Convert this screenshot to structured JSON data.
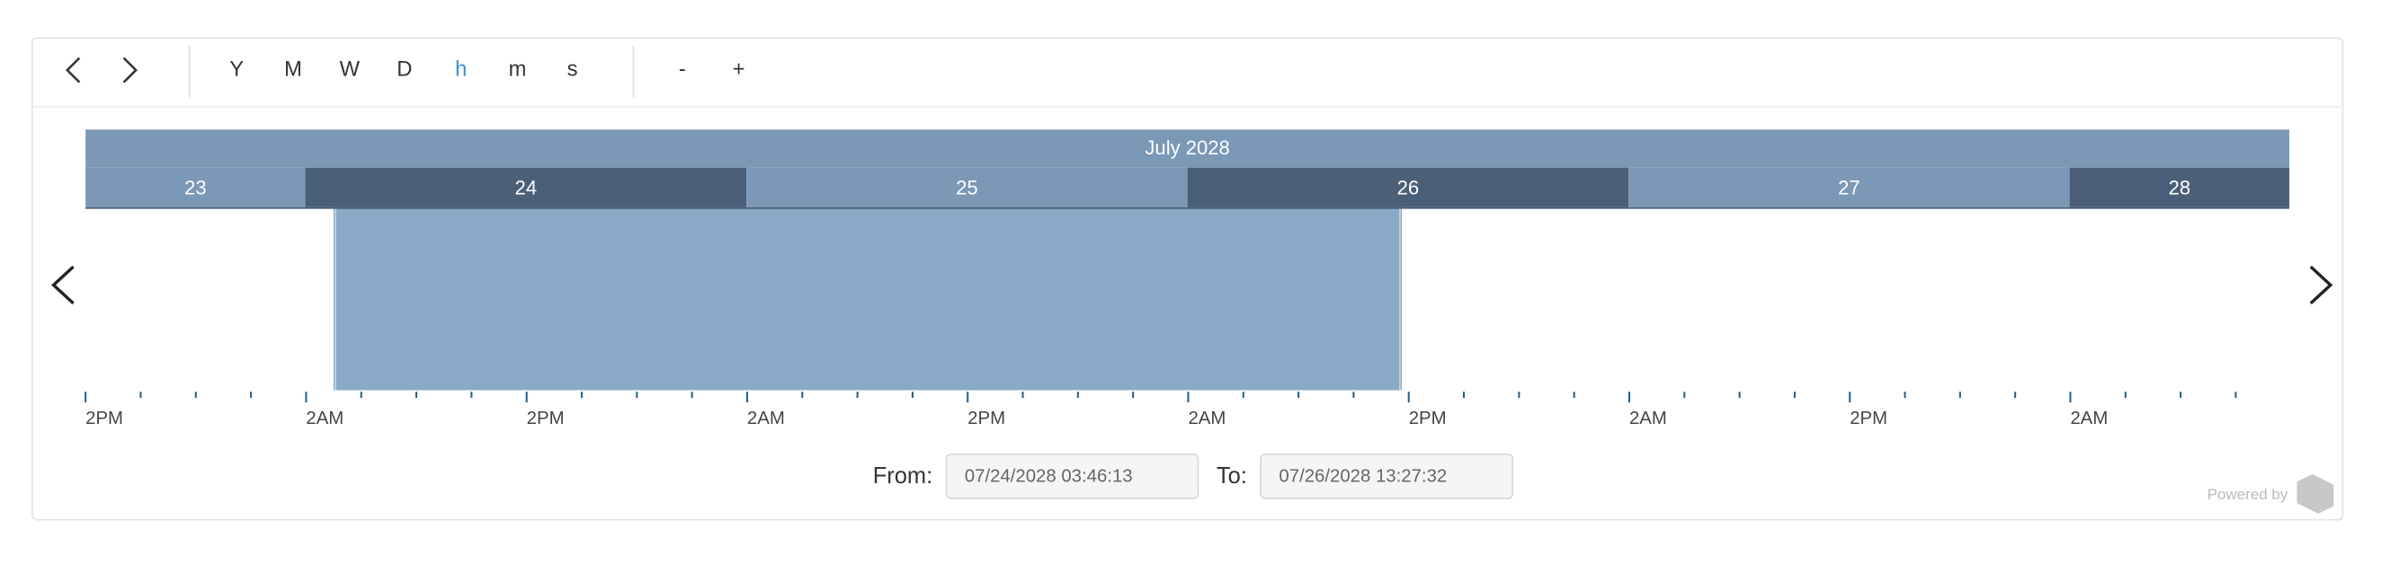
{
  "toolbar": {
    "buttons": [
      "Y",
      "M",
      "W",
      "D",
      "h",
      "m",
      "s"
    ],
    "active": "h",
    "zoom": [
      "-",
      "+"
    ]
  },
  "timeline": {
    "month": "July 2028",
    "days": [
      "23",
      "24",
      "25",
      "26",
      "27",
      "28"
    ],
    "tick_labels": [
      "2PM",
      "2AM",
      "2PM",
      "2AM",
      "2PM",
      "2AM",
      "2PM",
      "2AM",
      "2PM",
      "2AM"
    ]
  },
  "range": {
    "from_label": "From:",
    "from_value": "07/24/2028 03:46:13",
    "to_label": "To:",
    "to_value": "07/26/2028 13:27:32"
  },
  "footer": {
    "powered_by": "Powered by"
  }
}
